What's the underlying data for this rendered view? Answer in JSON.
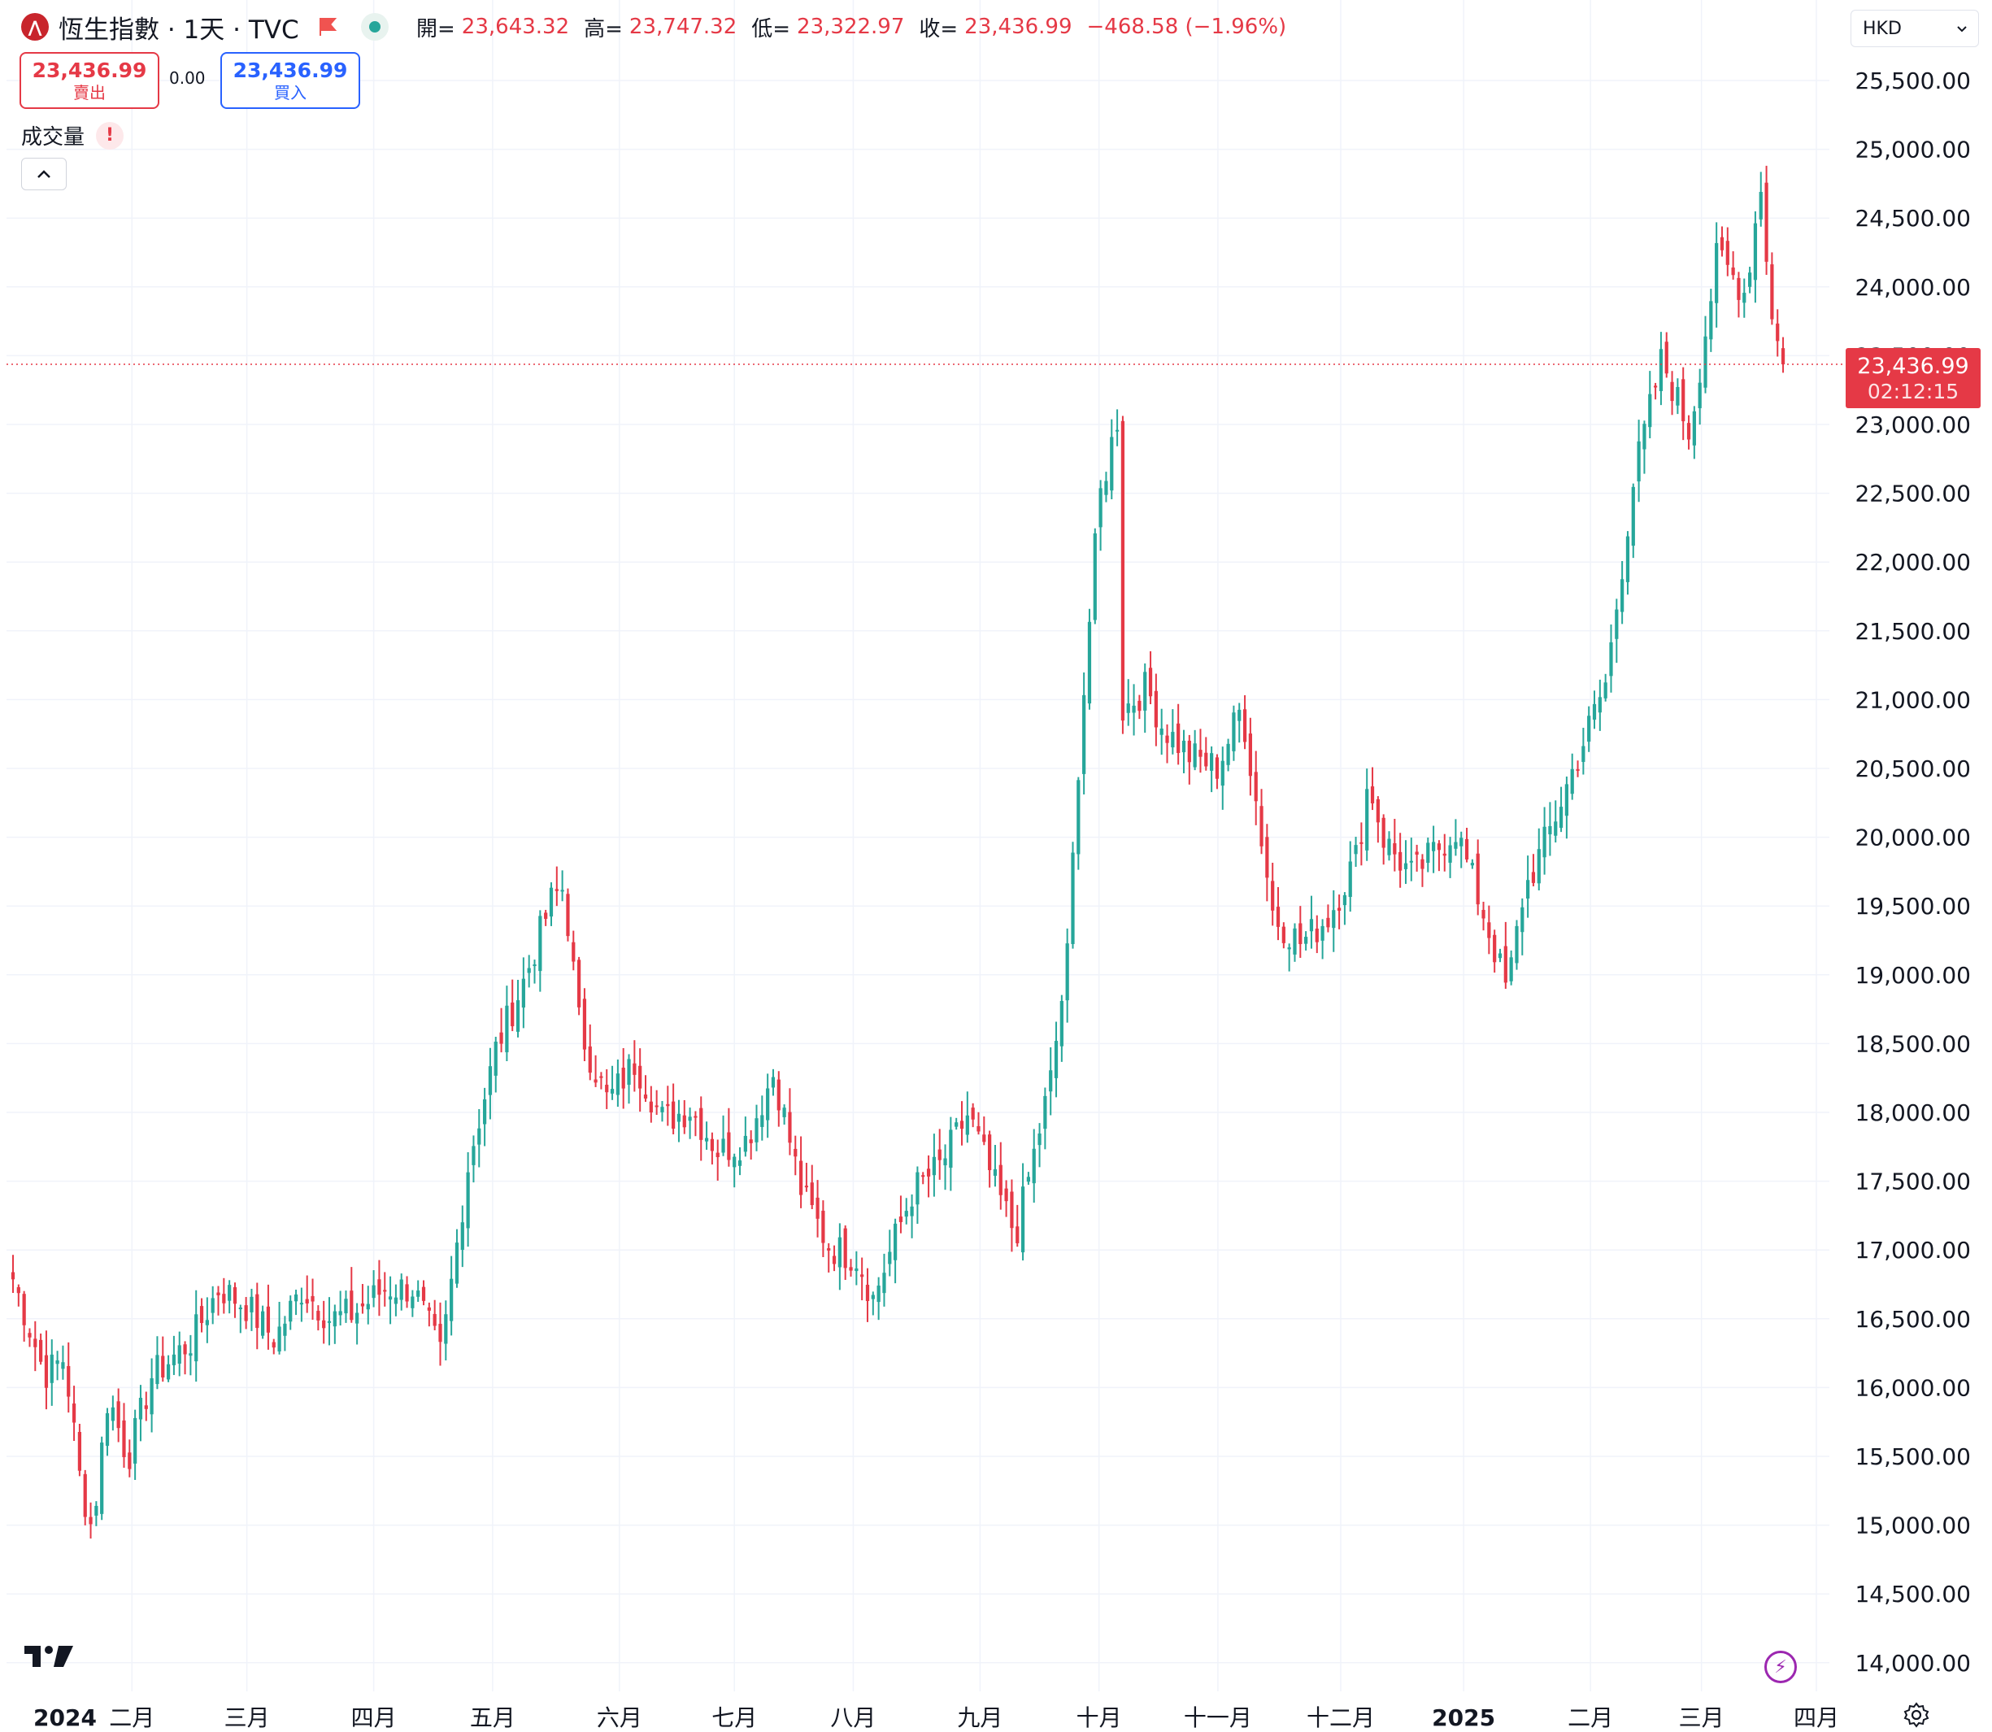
{
  "header": {
    "title": "恆生指數 · 1天 · TVC",
    "ohlc": {
      "open_label": "開=",
      "open": "23,643.32",
      "high_label": "高=",
      "high": "23,747.32",
      "low_label": "低=",
      "low": "23,322.97",
      "close_label": "收=",
      "close": "23,436.99",
      "change": "−468.58 (−1.96%)"
    }
  },
  "trade": {
    "sell_price": "23,436.99",
    "sell_label": "賣出",
    "spread": "0.00",
    "buy_price": "23,436.99",
    "buy_label": "買入"
  },
  "indicator": {
    "volume_label": "成交量",
    "warning_icon": "!"
  },
  "currency": {
    "value": "HKD"
  },
  "last_price": {
    "price": "23,436.99",
    "countdown": "02:12:15"
  },
  "colors": {
    "up": "#26a69a",
    "down": "#e53946",
    "accent": "#2962ff",
    "grid": "#f0f3fa"
  },
  "icons": [
    "sell-flag-icon",
    "market-status-icon",
    "warning-icon",
    "chevron-up-icon",
    "chevron-down-icon",
    "tradingview-logo-icon",
    "lightning-icon",
    "settings-icon"
  ],
  "chart_data": {
    "type": "candlestick",
    "symbol": "恆生指數",
    "interval": "1天",
    "y_ticks": [
      "25,500.00",
      "25,000.00",
      "24,500.00",
      "24,000.00",
      "23,500.00",
      "23,000.00",
      "22,500.00",
      "22,000.00",
      "21,500.00",
      "21,000.00",
      "20,500.00",
      "20,000.00",
      "19,500.00",
      "19,000.00",
      "18,500.00",
      "18,000.00",
      "17,500.00",
      "17,000.00",
      "16,500.00",
      "16,000.00",
      "15,500.00",
      "15,000.00",
      "14,500.00",
      "14,000.00"
    ],
    "ylim": [
      13850,
      25650
    ],
    "x_ticks": [
      "2024",
      "二月",
      "三月",
      "四月",
      "五月",
      "六月",
      "七月",
      "八月",
      "九月",
      "十月",
      "十一月",
      "十二月",
      "2025",
      "二月",
      "三月",
      "四月"
    ],
    "x_tick_bold": [
      true,
      false,
      false,
      false,
      false,
      false,
      false,
      false,
      false,
      false,
      false,
      false,
      true,
      false,
      false,
      false
    ],
    "last_price": 23436.99,
    "approx_close_series": [
      {
        "date": "2024-01-02",
        "close": 16789
      },
      {
        "date": "2024-01-05",
        "close": 16536
      },
      {
        "date": "2024-01-10",
        "close": 16098
      },
      {
        "date": "2024-01-15",
        "close": 16217
      },
      {
        "date": "2024-01-19",
        "close": 15309
      },
      {
        "date": "2024-01-22",
        "close": 14961
      },
      {
        "date": "2024-01-26",
        "close": 15952
      },
      {
        "date": "2024-01-31",
        "close": 15485
      },
      {
        "date": "2024-02-06",
        "close": 16082
      },
      {
        "date": "2024-02-16",
        "close": 16340
      },
      {
        "date": "2024-02-23",
        "close": 16726
      },
      {
        "date": "2024-03-01",
        "close": 16589
      },
      {
        "date": "2024-03-08",
        "close": 16353
      },
      {
        "date": "2024-03-15",
        "close": 16721
      },
      {
        "date": "2024-03-22",
        "close": 16499
      },
      {
        "date": "2024-03-28",
        "close": 16541
      },
      {
        "date": "2024-04-05",
        "close": 16724
      },
      {
        "date": "2024-04-12",
        "close": 16721
      },
      {
        "date": "2024-04-19",
        "close": 16224
      },
      {
        "date": "2024-04-26",
        "close": 17651
      },
      {
        "date": "2024-05-03",
        "close": 18476
      },
      {
        "date": "2024-05-10",
        "close": 18963
      },
      {
        "date": "2024-05-17",
        "close": 19553
      },
      {
        "date": "2024-05-20",
        "close": 19636
      },
      {
        "date": "2024-05-24",
        "close": 18609
      },
      {
        "date": "2024-05-31",
        "close": 18080
      },
      {
        "date": "2024-06-07",
        "close": 18367
      },
      {
        "date": "2024-06-14",
        "close": 17942
      },
      {
        "date": "2024-06-21",
        "close": 18028
      },
      {
        "date": "2024-06-28",
        "close": 17719
      },
      {
        "date": "2024-07-05",
        "close": 17799
      },
      {
        "date": "2024-07-12",
        "close": 18293
      },
      {
        "date": "2024-07-19",
        "close": 17417
      },
      {
        "date": "2024-07-26",
        "close": 17021
      },
      {
        "date": "2024-08-02",
        "close": 16945
      },
      {
        "date": "2024-08-06",
        "close": 16647
      },
      {
        "date": "2024-08-16",
        "close": 17430
      },
      {
        "date": "2024-08-23",
        "close": 17612
      },
      {
        "date": "2024-08-30",
        "close": 17989
      },
      {
        "date": "2024-09-06",
        "close": 17444
      },
      {
        "date": "2024-09-11",
        "close": 17108
      },
      {
        "date": "2024-09-20",
        "close": 18258
      },
      {
        "date": "2024-09-24",
        "close": 19129
      },
      {
        "date": "2024-09-27",
        "close": 20632
      },
      {
        "date": "2024-10-02",
        "close": 22443
      },
      {
        "date": "2024-10-07",
        "close": 23099
      },
      {
        "date": "2024-10-08",
        "close": 20926
      },
      {
        "date": "2024-10-14",
        "close": 21093
      },
      {
        "date": "2024-10-18",
        "close": 20804
      },
      {
        "date": "2024-10-25",
        "close": 20590
      },
      {
        "date": "2024-11-01",
        "close": 20506
      },
      {
        "date": "2024-11-07",
        "close": 20953
      },
      {
        "date": "2024-11-15",
        "close": 19426
      },
      {
        "date": "2024-11-22",
        "close": 19229
      },
      {
        "date": "2024-11-29",
        "close": 19423
      },
      {
        "date": "2024-12-06",
        "close": 19865
      },
      {
        "date": "2024-12-09",
        "close": 20414
      },
      {
        "date": "2024-12-13",
        "close": 19971
      },
      {
        "date": "2024-12-20",
        "close": 19720
      },
      {
        "date": "2024-12-31",
        "close": 20060
      },
      {
        "date": "2025-01-07",
        "close": 19448
      },
      {
        "date": "2025-01-13",
        "close": 18874
      },
      {
        "date": "2025-01-17",
        "close": 19584
      },
      {
        "date": "2025-01-24",
        "close": 20066
      },
      {
        "date": "2025-02-07",
        "close": 21133
      },
      {
        "date": "2025-02-14",
        "close": 22620
      },
      {
        "date": "2025-02-21",
        "close": 23478
      },
      {
        "date": "2025-02-28",
        "close": 22941
      },
      {
        "date": "2025-03-07",
        "close": 24231
      },
      {
        "date": "2025-03-14",
        "close": 23959
      },
      {
        "date": "2025-03-18",
        "close": 24740
      },
      {
        "date": "2025-03-21",
        "close": 23689
      },
      {
        "date": "2025-03-24",
        "close": 23436.99
      }
    ]
  }
}
